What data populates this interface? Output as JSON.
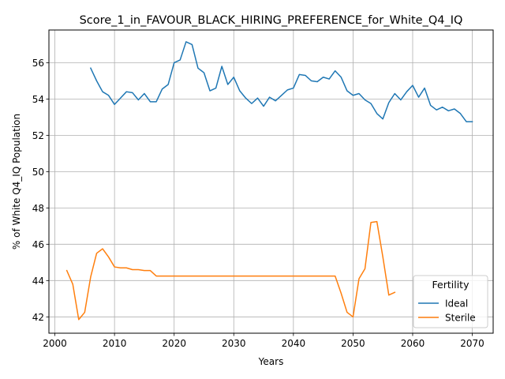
{
  "chart_data": {
    "type": "line",
    "title": "Score_1_in_FAVOUR_BLACK_HIRING_PREFERENCE_for_White_Q4_IQ",
    "xlabel": "Years",
    "ylabel": "% of White Q4_IQ Population",
    "xlim": [
      1999,
      2073.5
    ],
    "ylim": [
      41.1,
      57.8
    ],
    "xticks": [
      2000,
      2010,
      2020,
      2030,
      2040,
      2050,
      2060,
      2070
    ],
    "yticks": [
      42,
      44,
      46,
      48,
      50,
      52,
      54,
      56
    ],
    "grid": true,
    "legend": {
      "title": "Fertility",
      "placement": "lower-right"
    },
    "series": [
      {
        "name": "Ideal",
        "color": "#1f77b4",
        "x": [
          2006,
          2007,
          2008,
          2009,
          2010,
          2011,
          2012,
          2013,
          2014,
          2015,
          2016,
          2017,
          2018,
          2019,
          2020,
          2021,
          2022,
          2023,
          2024,
          2025,
          2026,
          2027,
          2028,
          2029,
          2030,
          2031,
          2032,
          2033,
          2034,
          2035,
          2036,
          2037,
          2038,
          2039,
          2040,
          2041,
          2042,
          2043,
          2044,
          2045,
          2046,
          2047,
          2048,
          2049,
          2050,
          2051,
          2052,
          2053,
          2054,
          2055,
          2056,
          2057,
          2058,
          2059,
          2060,
          2061,
          2062,
          2063,
          2064,
          2065,
          2066,
          2067,
          2068,
          2069,
          2070
        ],
        "values": [
          55.7,
          55.0,
          54.4,
          54.2,
          53.7,
          54.05,
          54.4,
          54.35,
          53.95,
          54.3,
          53.85,
          53.85,
          54.55,
          54.8,
          56.0,
          56.15,
          57.15,
          57.0,
          55.7,
          55.45,
          54.45,
          54.6,
          55.8,
          54.8,
          55.2,
          54.45,
          54.05,
          53.75,
          54.05,
          53.6,
          54.1,
          53.9,
          54.2,
          54.5,
          54.6,
          55.35,
          55.3,
          55.0,
          54.95,
          55.2,
          55.1,
          55.55,
          55.2,
          54.45,
          54.2,
          54.3,
          53.95,
          53.75,
          53.2,
          52.9,
          53.8,
          54.3,
          53.95,
          54.4,
          54.75,
          54.1,
          54.6,
          53.65,
          53.4,
          53.55,
          53.35,
          53.45,
          53.2,
          52.75,
          52.75
        ]
      },
      {
        "name": "Sterile",
        "color": "#ff7f0e",
        "x": [
          2002,
          2003,
          2004,
          2005,
          2006,
          2007,
          2008,
          2009,
          2010,
          2011,
          2012,
          2013,
          2014,
          2015,
          2016,
          2017,
          2018,
          2019,
          2020,
          2021,
          2022,
          2023,
          2024,
          2025,
          2026,
          2027,
          2028,
          2029,
          2030,
          2031,
          2032,
          2033,
          2034,
          2035,
          2036,
          2037,
          2038,
          2039,
          2040,
          2041,
          2042,
          2043,
          2044,
          2045,
          2046,
          2047,
          2048,
          2049,
          2050,
          2051,
          2052,
          2053,
          2054,
          2055,
          2056,
          2057
        ],
        "values": [
          44.55,
          43.8,
          41.85,
          42.25,
          44.2,
          45.5,
          45.75,
          45.3,
          44.75,
          44.7,
          44.7,
          44.6,
          44.6,
          44.55,
          44.55,
          44.25,
          44.25,
          44.25,
          44.25,
          44.25,
          44.25,
          44.25,
          44.25,
          44.25,
          44.25,
          44.25,
          44.25,
          44.25,
          44.25,
          44.25,
          44.25,
          44.25,
          44.25,
          44.25,
          44.25,
          44.25,
          44.25,
          44.25,
          44.25,
          44.25,
          44.25,
          44.25,
          44.25,
          44.25,
          44.25,
          44.25,
          43.3,
          42.25,
          42.0,
          44.1,
          44.65,
          47.2,
          47.25,
          45.3,
          43.2,
          43.35
        ]
      }
    ]
  }
}
